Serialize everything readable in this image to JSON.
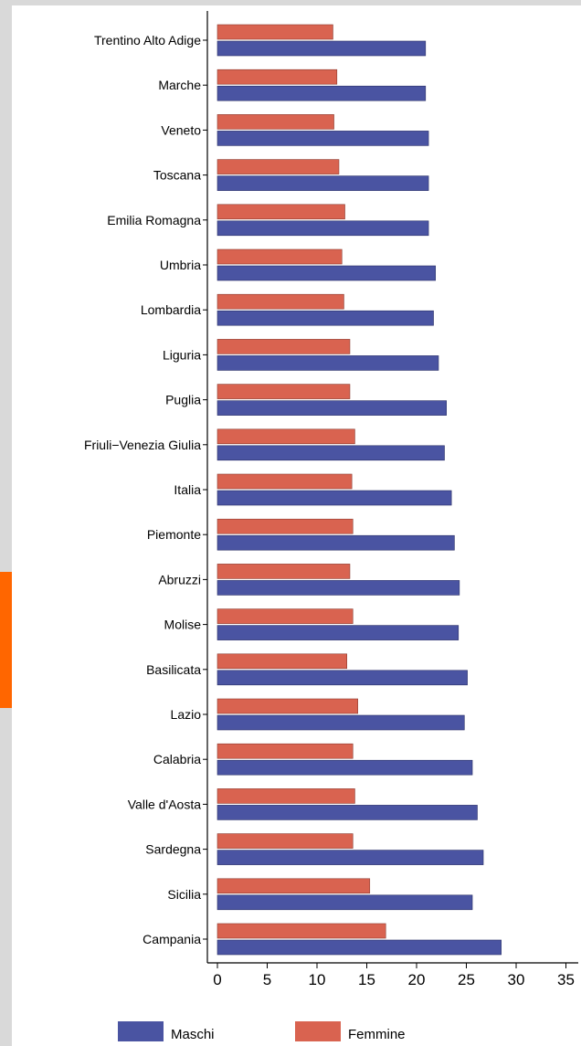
{
  "colors": {
    "maschi": "#4a54a2",
    "femmine": "#d96350",
    "accent": "#ff6600",
    "frame": "#d9d9d9",
    "axis": "#000000"
  },
  "chart_data": {
    "type": "bar",
    "orientation": "horizontal",
    "title": "",
    "xlabel": "",
    "ylabel": "",
    "xlim": [
      0,
      35
    ],
    "x_ticks": [
      "0",
      "5",
      "10",
      "15",
      "20",
      "25",
      "30",
      "35"
    ],
    "grid": false,
    "legend_position": "bottom",
    "categories": [
      "Trentino Alto Adige",
      "Marche",
      "Veneto",
      "Toscana",
      "Emilia Romagna",
      "Umbria",
      "Lombardia",
      "Liguria",
      "Puglia",
      "Friuli−Venezia Giulia",
      "Italia",
      "Piemonte",
      "Abruzzi",
      "Molise",
      "Basilicata",
      "Lazio",
      "Calabria",
      "Valle d'Aosta",
      "Sardegna",
      "Sicilia",
      "Campania"
    ],
    "series": [
      {
        "name": "Femmine",
        "values": [
          11.6,
          12.0,
          11.7,
          12.2,
          12.8,
          12.5,
          12.7,
          13.3,
          13.3,
          13.8,
          13.5,
          13.6,
          13.3,
          13.6,
          13.0,
          14.1,
          13.6,
          13.8,
          13.6,
          15.3,
          16.9
        ]
      },
      {
        "name": "Maschi",
        "values": [
          20.9,
          20.9,
          21.2,
          21.2,
          21.2,
          21.9,
          21.7,
          22.2,
          23.0,
          22.8,
          23.5,
          23.8,
          24.3,
          24.2,
          25.1,
          24.8,
          25.6,
          26.1,
          26.7,
          25.6,
          28.5
        ]
      }
    ]
  }
}
